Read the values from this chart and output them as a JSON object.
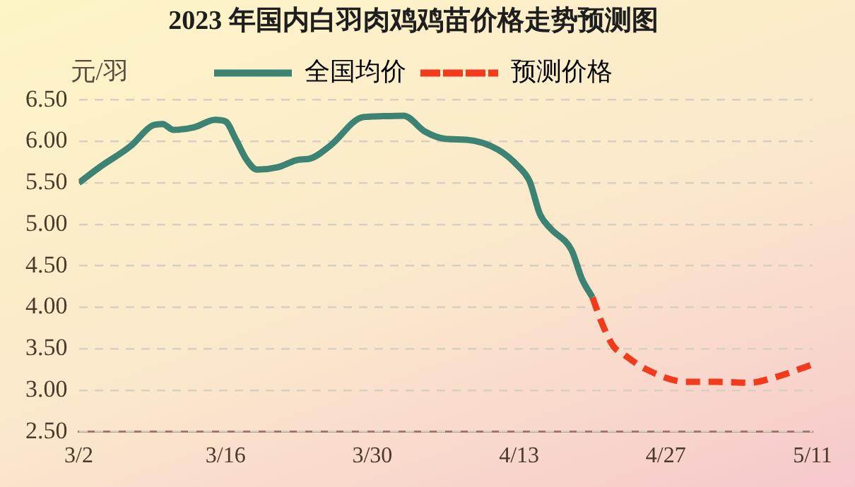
{
  "chart_data": {
    "type": "line",
    "title": "2023 年国内白羽肉鸡鸡苗价格走势预测图",
    "ylabel": "元/羽",
    "xlim": [
      "2023-03-02",
      "2023-05-11"
    ],
    "xticks": [
      {
        "value": "2023-03-02",
        "label": "3/2"
      },
      {
        "value": "2023-03-16",
        "label": "3/16"
      },
      {
        "value": "2023-03-30",
        "label": "3/30"
      },
      {
        "value": "2023-04-13",
        "label": "4/13"
      },
      {
        "value": "2023-04-27",
        "label": "4/27"
      },
      {
        "value": "2023-05-11",
        "label": "5/11"
      }
    ],
    "ylim": [
      2.5,
      6.5
    ],
    "yticks": [
      {
        "value": 2.5,
        "label": "2.50"
      },
      {
        "value": 3,
        "label": "3.00"
      },
      {
        "value": 3.5,
        "label": "3.50"
      },
      {
        "value": 4,
        "label": "4.00"
      },
      {
        "value": 4.5,
        "label": "4.50"
      },
      {
        "value": 5,
        "label": "5.00"
      },
      {
        "value": 5.5,
        "label": "5.50"
      },
      {
        "value": 6,
        "label": "6.00"
      },
      {
        "value": 6.5,
        "label": "6.50"
      }
    ],
    "grid": "y",
    "legend": "top",
    "marker": "none",
    "series": [
      {
        "name": "全国均价",
        "color": "#3d8374",
        "line_style": "solid",
        "x": [
          "2023-03-02",
          "2023-03-04",
          "2023-03-07",
          "2023-03-09",
          "2023-03-10",
          "2023-03-11",
          "2023-03-13",
          "2023-03-15",
          "2023-03-16",
          "2023-03-17",
          "2023-03-18",
          "2023-03-19",
          "2023-03-21",
          "2023-03-23",
          "2023-03-24",
          "2023-03-26",
          "2023-03-29",
          "2023-03-30",
          "2023-04-02",
          "2023-04-04",
          "2023-04-06",
          "2023-04-08",
          "2023-04-11",
          "2023-04-13",
          "2023-04-14",
          "2023-04-15",
          "2023-04-16",
          "2023-04-18",
          "2023-04-19",
          "2023-04-20"
        ],
        "values": [
          5.5,
          5.69,
          5.95,
          6.19,
          6.21,
          6.14,
          6.17,
          6.26,
          6.24,
          6.02,
          5.78,
          5.66,
          5.69,
          5.78,
          5.79,
          5.95,
          6.29,
          6.3,
          6.31,
          6.12,
          6.03,
          6.02,
          5.9,
          5.69,
          5.52,
          5.12,
          4.95,
          4.69,
          4.34,
          4.12
        ]
      },
      {
        "name": "预测价格",
        "color": "#f23a1c",
        "line_style": "dashed",
        "x": [
          "2023-04-20",
          "2023-04-21",
          "2023-04-22",
          "2023-04-23",
          "2023-04-25",
          "2023-04-29",
          "2023-05-02",
          "2023-05-05",
          "2023-05-07",
          "2023-05-11"
        ],
        "values": [
          4.12,
          3.78,
          3.53,
          3.43,
          3.26,
          3.1,
          3.1,
          3.09,
          3.14,
          3.31
        ]
      }
    ]
  }
}
